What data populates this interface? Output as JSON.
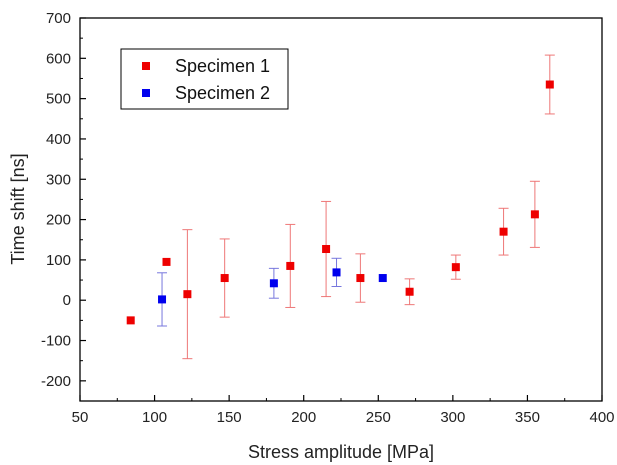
{
  "chart_data": {
    "type": "scatter",
    "xlabel": "Stress amplitude [MPa]",
    "ylabel": "Time shift [ns]",
    "xlim": [
      50,
      400
    ],
    "ylim": [
      -250,
      700
    ],
    "xticks": [
      50,
      100,
      150,
      200,
      250,
      300,
      350,
      400
    ],
    "yticks": [
      -200,
      -100,
      0,
      100,
      200,
      300,
      400,
      500,
      600,
      700
    ],
    "grid": false,
    "legend": "top-left",
    "series": [
      {
        "name": "Specimen 1",
        "color": "#ee0000",
        "error_color": "#ee7777",
        "points": [
          {
            "x": 84,
            "y": -50,
            "err": 0
          },
          {
            "x": 108,
            "y": 95,
            "err": 0
          },
          {
            "x": 122,
            "y": 15,
            "err": 160
          },
          {
            "x": 147,
            "y": 55,
            "err": 97
          },
          {
            "x": 191,
            "y": 85,
            "err": 103
          },
          {
            "x": 215,
            "y": 127,
            "err": 118
          },
          {
            "x": 238,
            "y": 55,
            "err": 60
          },
          {
            "x": 271,
            "y": 21,
            "err": 32
          },
          {
            "x": 302,
            "y": 82,
            "err": 30
          },
          {
            "x": 334,
            "y": 170,
            "err": 58
          },
          {
            "x": 355,
            "y": 213,
            "err": 82
          },
          {
            "x": 365,
            "y": 535,
            "err": 73
          }
        ]
      },
      {
        "name": "Specimen 2",
        "color": "#0000ee",
        "error_color": "#7777dd",
        "points": [
          {
            "x": 105,
            "y": 2,
            "err": 66
          },
          {
            "x": 180,
            "y": 42,
            "err": 37
          },
          {
            "x": 222,
            "y": 69,
            "err": 35
          },
          {
            "x": 253,
            "y": 55,
            "err": 0
          }
        ]
      }
    ]
  }
}
